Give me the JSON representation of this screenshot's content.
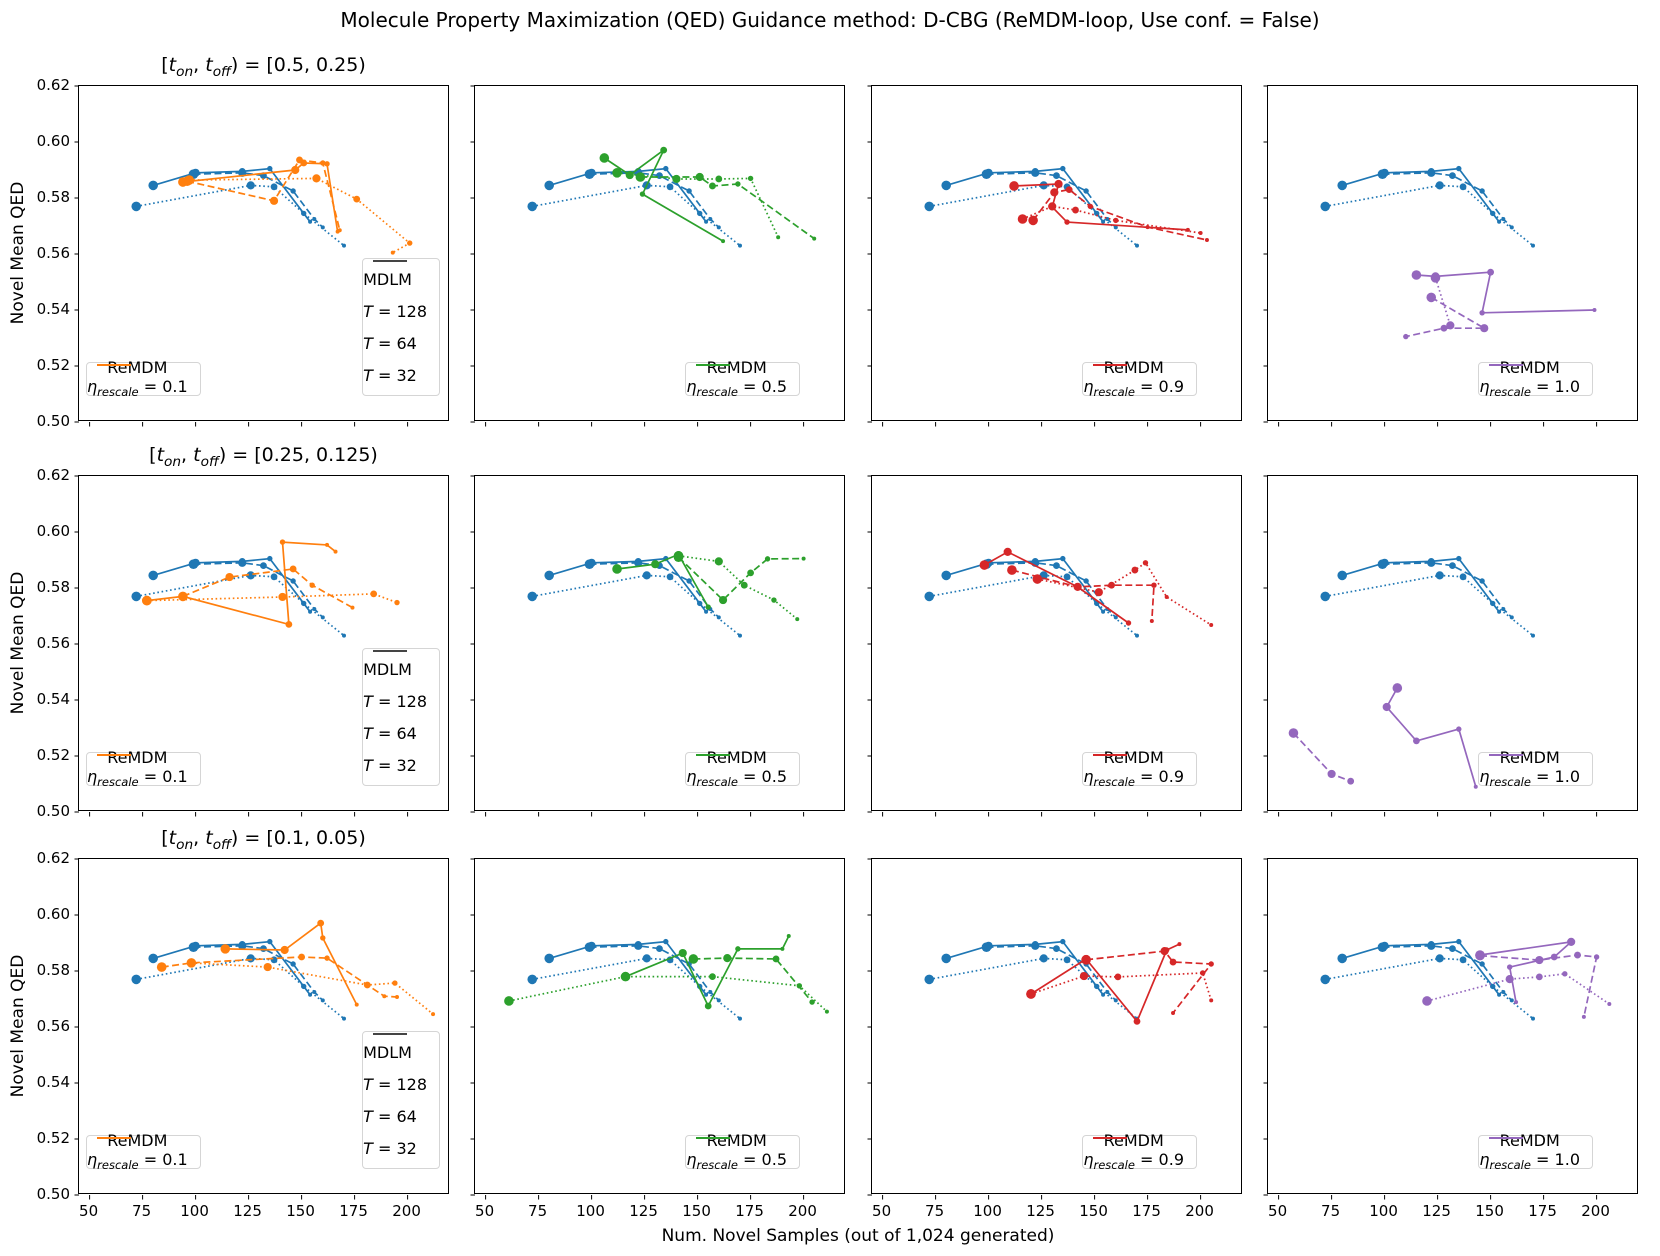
{
  "chart_data": {
    "type": "line",
    "title": "Molecule Property Maximization (QED) Guidance method: D-CBG (ReMDM-loop, Use conf. = False)",
    "xlabel": "Num. Novel Samples (out of 1,024 generated)",
    "ylabel": "Novel Mean QED",
    "xlim": [
      45,
      220
    ],
    "ylim": [
      0.5,
      0.62
    ],
    "xticks": [
      50,
      75,
      100,
      125,
      150,
      175,
      200
    ],
    "yticks": [
      0.5,
      0.52,
      0.54,
      0.56,
      0.58,
      0.6,
      0.62
    ],
    "grid": false,
    "colors": {
      "mdlm": "#1f77b4",
      "remdm_by_col": [
        "#ff7f0e",
        "#2ca02c",
        "#d62728",
        "#9467bd"
      ],
      "legend_linestyle": "#444444",
      "spine": "#000000"
    },
    "row_titles": [
      {
        "pre": "[",
        "t1": "t",
        "sub1": "on",
        "mid": ", ",
        "t2": "t",
        "sub2": "off",
        "post": ") = [0.5, 0.25)"
      },
      {
        "pre": "[",
        "t1": "t",
        "sub1": "on",
        "mid": ", ",
        "t2": "t",
        "sub2": "off",
        "post": ") = [0.25, 0.125)"
      },
      {
        "pre": "[",
        "t1": "t",
        "sub1": "on",
        "mid": ", ",
        "t2": "t",
        "sub2": "off",
        "post": ") = [0.1, 0.05)"
      }
    ],
    "legend": {
      "mdlm_label": "MDLM",
      "t_symbol": "T",
      "t_values": [
        "= 128",
        "= 64",
        "= 32"
      ],
      "t_styles": [
        "solid",
        "dashed",
        "dotted"
      ],
      "remdm_label": "ReMDM",
      "eta_symbol": "η",
      "eta_sub": "rescale",
      "eta_values": [
        "= 0.1",
        "= 0.5",
        "= 0.9",
        "= 1.0"
      ]
    },
    "mdlm_series": {
      "T128": [
        [
          80,
          0.5845
        ],
        [
          100,
          0.589
        ],
        [
          122,
          0.5895
        ],
        [
          135,
          0.5905
        ],
        [
          154,
          0.5715
        ]
      ],
      "T64": [
        [
          99,
          0.5885
        ],
        [
          122,
          0.589
        ],
        [
          132,
          0.588
        ],
        [
          146,
          0.5825
        ],
        [
          156,
          0.5725
        ],
        [
          160,
          0.5695
        ]
      ],
      "T32": [
        [
          72,
          0.577
        ],
        [
          126,
          0.5845
        ],
        [
          137,
          0.584
        ],
        [
          151,
          0.5745
        ],
        [
          170,
          0.563
        ]
      ]
    },
    "subplots": [
      {
        "row": 0,
        "col": 0,
        "eta_index": 0,
        "remdm": {
          "T128": [
            [
              94,
              0.5857
            ],
            [
              147,
              0.59
            ],
            [
              151,
              0.5925
            ],
            [
              162,
              0.5922
            ],
            [
              167,
              0.568
            ]
          ],
          "T64": [
            [
              96,
              0.586
            ],
            [
              137,
              0.579
            ],
            [
              149,
              0.5936
            ],
            [
              160,
              0.5925
            ],
            [
              168,
              0.5685
            ]
          ],
          "T32": [
            [
              97,
              0.5864
            ],
            [
              157,
              0.587
            ],
            [
              176,
              0.5796
            ],
            [
              201,
              0.5639
            ],
            [
              193,
              0.5605
            ]
          ]
        }
      },
      {
        "row": 0,
        "col": 1,
        "eta_index": 1,
        "remdm": {
          "T128": [
            [
              106,
              0.5943
            ],
            [
              118,
              0.5882
            ],
            [
              134,
              0.5971
            ],
            [
              124,
              0.5814
            ],
            [
              162,
              0.5646
            ]
          ],
          "T64": [
            [
              123,
              0.5875
            ],
            [
              151,
              0.5875
            ],
            [
              157,
              0.5843
            ],
            [
              169,
              0.585
            ],
            [
              205,
              0.5655
            ]
          ],
          "T32": [
            [
              112,
              0.589
            ],
            [
              140,
              0.5868
            ],
            [
              160,
              0.5868
            ],
            [
              175,
              0.587
            ],
            [
              188,
              0.566
            ]
          ]
        }
      },
      {
        "row": 0,
        "col": 2,
        "eta_index": 2,
        "remdm": {
          "T128": [
            [
              112,
              0.5843
            ],
            [
              133,
              0.585
            ],
            [
              130,
              0.5768
            ],
            [
              137,
              0.5714
            ],
            [
              194,
              0.5686
            ]
          ],
          "T64": [
            [
              121,
              0.572
            ],
            [
              131,
              0.582
            ],
            [
              138,
              0.583
            ],
            [
              148,
              0.577
            ],
            [
              175,
              0.5696
            ],
            [
              203,
              0.565
            ]
          ],
          "T32": [
            [
              116,
              0.5725
            ],
            [
              130,
              0.577
            ],
            [
              141,
              0.5757
            ],
            [
              160,
              0.572
            ],
            [
              200,
              0.5675
            ]
          ]
        }
      },
      {
        "row": 0,
        "col": 3,
        "eta_index": 3,
        "remdm": {
          "T128": [
            [
              115,
              0.5525
            ],
            [
              124,
              0.552
            ],
            [
              150,
              0.5535
            ],
            [
              146,
              0.539
            ],
            [
              199,
              0.54
            ]
          ],
          "T64": [
            [
              122,
              0.5445
            ],
            [
              147,
              0.5335
            ],
            [
              128,
              0.5335
            ],
            [
              110,
              0.5305
            ]
          ],
          "T32": [
            [
              124,
              0.5515
            ],
            [
              131,
              0.5345
            ]
          ]
        }
      },
      {
        "row": 1,
        "col": 0,
        "eta_index": 0,
        "remdm": {
          "T128": [
            [
              77,
              0.5755
            ],
            [
              94,
              0.577
            ],
            [
              144,
              0.567
            ],
            [
              141,
              0.5964
            ],
            [
              162,
              0.5954
            ],
            [
              166,
              0.593
            ]
          ],
          "T64": [
            [
              94,
              0.577
            ],
            [
              116,
              0.5839
            ],
            [
              146,
              0.5868
            ],
            [
              155,
              0.581
            ],
            [
              174,
              0.573
            ]
          ],
          "T32": [
            [
              77,
              0.5755
            ],
            [
              141,
              0.5768
            ],
            [
              184,
              0.5779
            ],
            [
              195,
              0.5748
            ]
          ]
        }
      },
      {
        "row": 1,
        "col": 1,
        "eta_index": 1,
        "remdm": {
          "T128": [
            [
              112,
              0.5868
            ],
            [
              130,
              0.5885
            ],
            [
              141,
              0.592
            ],
            [
              155,
              0.5732
            ]
          ],
          "T64": [
            [
              141,
              0.591
            ],
            [
              162,
              0.5757
            ],
            [
              175,
              0.5854
            ],
            [
              183,
              0.5904
            ],
            [
              200,
              0.5905
            ]
          ],
          "T32": [
            [
              141,
              0.5915
            ],
            [
              160,
              0.5895
            ],
            [
              172,
              0.581
            ],
            [
              186,
              0.5757
            ],
            [
              197,
              0.5689
            ]
          ]
        }
      },
      {
        "row": 1,
        "col": 2,
        "eta_index": 2,
        "remdm": {
          "T128": [
            [
              98,
              0.5882
            ],
            [
              109,
              0.5929
            ],
            [
              142,
              0.5804
            ],
            [
              166,
              0.5675
            ]
          ],
          "T64": [
            [
              111,
              0.5864
            ],
            [
              142,
              0.5804
            ],
            [
              158,
              0.581
            ],
            [
              178,
              0.581
            ],
            [
              177,
              0.5682
            ]
          ],
          "T32": [
            [
              123,
              0.5832
            ],
            [
              152,
              0.5785
            ],
            [
              169,
              0.5864
            ],
            [
              174,
              0.589
            ],
            [
              184,
              0.5768
            ],
            [
              205,
              0.5668
            ]
          ]
        }
      },
      {
        "row": 1,
        "col": 3,
        "eta_index": 3,
        "remdm": {
          "T128": [
            [
              106,
              0.5443
            ],
            [
              101,
              0.5375
            ],
            [
              115,
              0.5254
            ],
            [
              135,
              0.5296
            ],
            [
              143,
              0.509
            ]
          ],
          "T64": [
            [
              57,
              0.5282
            ],
            [
              75,
              0.5136
            ],
            [
              84,
              0.511
            ]
          ],
          "T32": []
        }
      },
      {
        "row": 2,
        "col": 0,
        "eta_index": 0,
        "remdm": {
          "T128": [
            [
              114,
              0.5879
            ],
            [
              142,
              0.5875
            ],
            [
              159,
              0.5971
            ],
            [
              160,
              0.5918
            ],
            [
              176,
              0.568
            ]
          ],
          "T64": [
            [
              84,
              0.5814
            ],
            [
              98,
              0.5829
            ],
            [
              150,
              0.585
            ],
            [
              162,
              0.5846
            ],
            [
              189,
              0.571
            ],
            [
              195,
              0.5707
            ]
          ],
          "T32": [
            [
              98,
              0.5829
            ],
            [
              134,
              0.5814
            ],
            [
              181,
              0.575
            ],
            [
              194,
              0.5757
            ],
            [
              212,
              0.5646
            ]
          ]
        }
      },
      {
        "row": 2,
        "col": 1,
        "eta_index": 1,
        "remdm": {
          "T128": [
            [
              116,
              0.578
            ],
            [
              143,
              0.5864
            ],
            [
              155,
              0.5675
            ],
            [
              169,
              0.5879
            ],
            [
              190,
              0.5879
            ],
            [
              193,
              0.5925
            ]
          ],
          "T64": [
            [
              148,
              0.5843
            ],
            [
              164,
              0.5846
            ],
            [
              187,
              0.5843
            ],
            [
              204,
              0.5689
            ]
          ],
          "T32": [
            [
              61,
              0.5693
            ],
            [
              116,
              0.578
            ],
            [
              157,
              0.578
            ],
            [
              198,
              0.5747
            ],
            [
              211,
              0.5655
            ]
          ]
        }
      },
      {
        "row": 2,
        "col": 2,
        "eta_index": 2,
        "remdm": {
          "T128": [
            [
              120,
              0.5718
            ],
            [
              146,
              0.5843
            ],
            [
              170,
              0.562
            ],
            [
              184,
              0.5875
            ],
            [
              190,
              0.5896
            ]
          ],
          "T64": [
            [
              146,
              0.584
            ],
            [
              183,
              0.5871
            ],
            [
              187,
              0.5832
            ],
            [
              205,
              0.5825
            ],
            [
              187,
              0.565
            ]
          ],
          "T32": [
            [
              120,
              0.5718
            ],
            [
              145,
              0.5782
            ],
            [
              161,
              0.5779
            ],
            [
              201,
              0.5793
            ],
            [
              205,
              0.5695
            ]
          ]
        }
      },
      {
        "row": 2,
        "col": 3,
        "eta_index": 3,
        "remdm": {
          "T128": [
            [
              145,
              0.5857
            ],
            [
              188,
              0.5904
            ],
            [
              180,
              0.585
            ],
            [
              159,
              0.5814
            ],
            [
              162,
              0.5689
            ]
          ],
          "T64": [
            [
              145,
              0.5855
            ],
            [
              173,
              0.5839
            ],
            [
              191,
              0.5857
            ],
            [
              200,
              0.585
            ],
            [
              194,
              0.5636
            ]
          ],
          "T32": [
            [
              120,
              0.5693
            ],
            [
              159,
              0.5771
            ],
            [
              173,
              0.5779
            ],
            [
              185,
              0.579
            ],
            [
              206,
              0.5682
            ]
          ]
        }
      }
    ]
  }
}
